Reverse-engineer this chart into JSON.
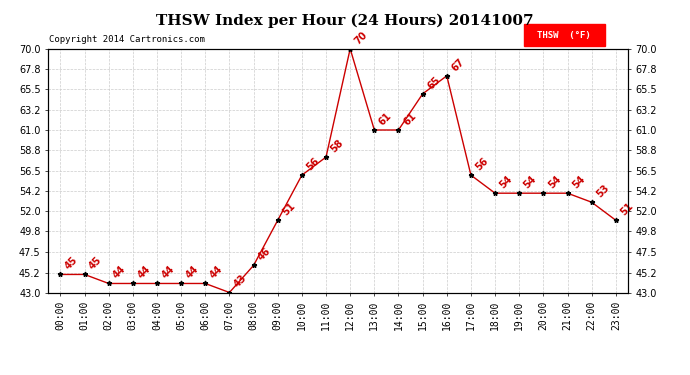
{
  "title": "THSW Index per Hour (24 Hours) 20141007",
  "copyright": "Copyright 2014 Cartronics.com",
  "legend_label": "THSW  (°F)",
  "hours": [
    0,
    1,
    2,
    3,
    4,
    5,
    6,
    7,
    8,
    9,
    10,
    11,
    12,
    13,
    14,
    15,
    16,
    17,
    18,
    19,
    20,
    21,
    22,
    23
  ],
  "x_labels": [
    "00:00",
    "01:00",
    "02:00",
    "03:00",
    "04:00",
    "05:00",
    "06:00",
    "07:00",
    "08:00",
    "09:00",
    "10:00",
    "11:00",
    "12:00",
    "13:00",
    "14:00",
    "15:00",
    "16:00",
    "17:00",
    "18:00",
    "19:00",
    "20:00",
    "21:00",
    "22:00",
    "23:00"
  ],
  "values": [
    45,
    45,
    44,
    44,
    44,
    44,
    44,
    43,
    46,
    51,
    56,
    58,
    70,
    61,
    61,
    65,
    67,
    56,
    54,
    54,
    54,
    54,
    53,
    51
  ],
  "ylim": [
    43.0,
    70.0
  ],
  "yticks": [
    43.0,
    45.2,
    47.5,
    49.8,
    52.0,
    54.2,
    56.5,
    58.8,
    61.0,
    63.2,
    65.5,
    67.8,
    70.0
  ],
  "ytick_labels": [
    "43.0",
    "45.2",
    "47.5",
    "49.8",
    "52.0",
    "54.2",
    "56.5",
    "58.8",
    "61.0",
    "63.2",
    "65.5",
    "67.8",
    "70.0"
  ],
  "line_color": "#cc0000",
  "marker_color": "#000000",
  "grid_color": "#cccccc",
  "background_color": "#ffffff",
  "title_fontsize": 11,
  "label_fontsize": 7,
  "annotation_fontsize": 7,
  "copyright_fontsize": 6.5
}
